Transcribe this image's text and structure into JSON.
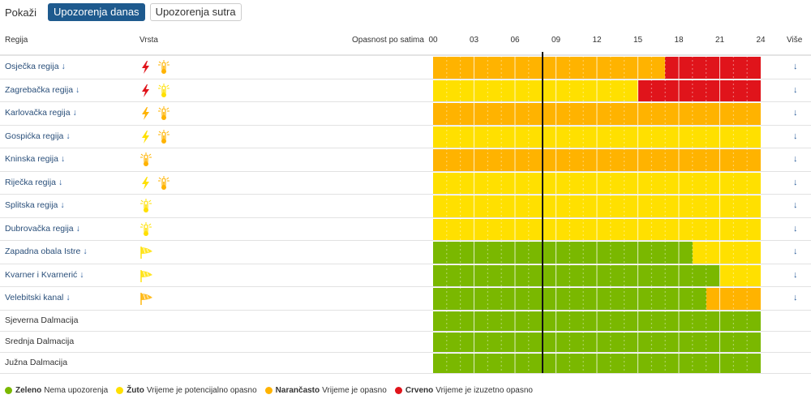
{
  "toolbar": {
    "show_label": "Pokaži",
    "tabs": [
      {
        "label": "Upozorenja danas",
        "active": true
      },
      {
        "label": "Upozorenja sutra",
        "active": false
      }
    ]
  },
  "header": {
    "region": "Regija",
    "type": "Vrsta",
    "danger_by_hour": "Opasnost po satima",
    "more": "Više",
    "ticks": [
      "00",
      "03",
      "06",
      "09",
      "12",
      "15",
      "18",
      "21",
      "24"
    ]
  },
  "current_hour": 8,
  "colors": {
    "green": "#7ab800",
    "yellow": "#ffe000",
    "orange": "#ffb300",
    "red": "#e0141b",
    "link": "#2a4f7a"
  },
  "rows": [
    {
      "name": "Osječka regija",
      "link": true,
      "icons": [
        "bolt-red",
        "thermo-orange"
      ],
      "segments": [
        {
          "color": "orange",
          "from": 0,
          "to": 17
        },
        {
          "color": "red",
          "from": 17,
          "to": 24
        }
      ]
    },
    {
      "name": "Zagrebačka regija",
      "link": true,
      "icons": [
        "bolt-red",
        "thermo-yellow"
      ],
      "segments": [
        {
          "color": "yellow",
          "from": 0,
          "to": 15
        },
        {
          "color": "red",
          "from": 15,
          "to": 24
        }
      ]
    },
    {
      "name": "Karlovačka regija",
      "link": true,
      "icons": [
        "bolt-orange",
        "thermo-orange"
      ],
      "segments": [
        {
          "color": "orange",
          "from": 0,
          "to": 24
        }
      ]
    },
    {
      "name": "Gospićka regija",
      "link": true,
      "icons": [
        "bolt-yellow",
        "thermo-orange"
      ],
      "segments": [
        {
          "color": "yellow",
          "from": 0,
          "to": 24
        }
      ]
    },
    {
      "name": "Kninska regija",
      "link": true,
      "icons": [
        "thermo-orange"
      ],
      "segments": [
        {
          "color": "orange",
          "from": 0,
          "to": 24
        }
      ]
    },
    {
      "name": "Riječka regija",
      "link": true,
      "icons": [
        "bolt-yellow",
        "thermo-orange"
      ],
      "segments": [
        {
          "color": "yellow",
          "from": 0,
          "to": 24
        }
      ]
    },
    {
      "name": "Splitska regija",
      "link": true,
      "icons": [
        "thermo-yellow"
      ],
      "segments": [
        {
          "color": "yellow",
          "from": 0,
          "to": 24
        }
      ]
    },
    {
      "name": "Dubrovačka regija",
      "link": true,
      "icons": [
        "thermo-yellow"
      ],
      "segments": [
        {
          "color": "yellow",
          "from": 0,
          "to": 24
        }
      ]
    },
    {
      "name": "Zapadna obala Istre",
      "link": true,
      "icons": [
        "wind-yellow"
      ],
      "segments": [
        {
          "color": "green",
          "from": 0,
          "to": 19
        },
        {
          "color": "yellow",
          "from": 19,
          "to": 24
        }
      ]
    },
    {
      "name": "Kvarner i Kvarnerić",
      "link": true,
      "icons": [
        "wind-yellow"
      ],
      "segments": [
        {
          "color": "green",
          "from": 0,
          "to": 21
        },
        {
          "color": "yellow",
          "from": 21,
          "to": 24
        }
      ]
    },
    {
      "name": "Velebitski kanal",
      "link": true,
      "icons": [
        "wind-orange"
      ],
      "segments": [
        {
          "color": "green",
          "from": 0,
          "to": 20
        },
        {
          "color": "orange",
          "from": 20,
          "to": 24
        }
      ]
    },
    {
      "name": "Sjeverna Dalmacija",
      "link": false,
      "icons": [],
      "segments": [
        {
          "color": "green",
          "from": 0,
          "to": 24
        }
      ]
    },
    {
      "name": "Srednja Dalmacija",
      "link": false,
      "icons": [],
      "segments": [
        {
          "color": "green",
          "from": 0,
          "to": 24
        }
      ]
    },
    {
      "name": "Južna Dalmacija",
      "link": false,
      "icons": [],
      "segments": [
        {
          "color": "green",
          "from": 0,
          "to": 24
        }
      ]
    }
  ],
  "legend": [
    {
      "color": "green",
      "name": "Zeleno",
      "desc": "Nema upozorenja"
    },
    {
      "color": "yellow",
      "name": "Žuto",
      "desc": "Vrijeme je potencijalno opasno"
    },
    {
      "color": "orange",
      "name": "Narančasto",
      "desc": "Vrijeme je opasno"
    },
    {
      "color": "red",
      "name": "Crveno",
      "desc": "Vrijeme je izuzetno opasno"
    }
  ]
}
